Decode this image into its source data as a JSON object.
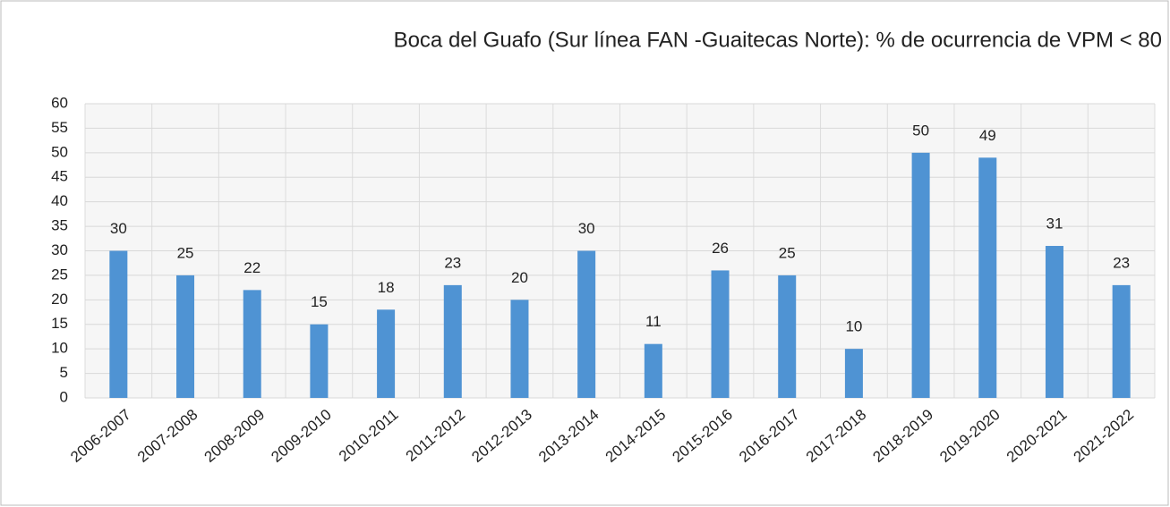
{
  "chart_data": {
    "type": "bar",
    "title": "Boca del Guafo (Sur línea FAN -Guaitecas Norte): % de ocurrencia de VPM < 80",
    "categories": [
      "2006-2007",
      "2007-2008",
      "2008-2009",
      "2009-2010",
      "2010-2011",
      "2011-2012",
      "2012-2013",
      "2013-2014",
      "2014-2015",
      "2015-2016",
      "2016-2017",
      "2017-2018",
      "2018-2019",
      "2019-2020",
      "2020-2021",
      "2021-2022"
    ],
    "values": [
      30,
      25,
      22,
      15,
      18,
      23,
      20,
      30,
      11,
      26,
      25,
      10,
      50,
      49,
      31,
      23
    ],
    "color": "#4f93d3",
    "ylim": [
      0,
      60
    ],
    "yticks": [
      0,
      5,
      10,
      15,
      20,
      25,
      30,
      35,
      40,
      45,
      50,
      55,
      60
    ],
    "grid": true
  }
}
